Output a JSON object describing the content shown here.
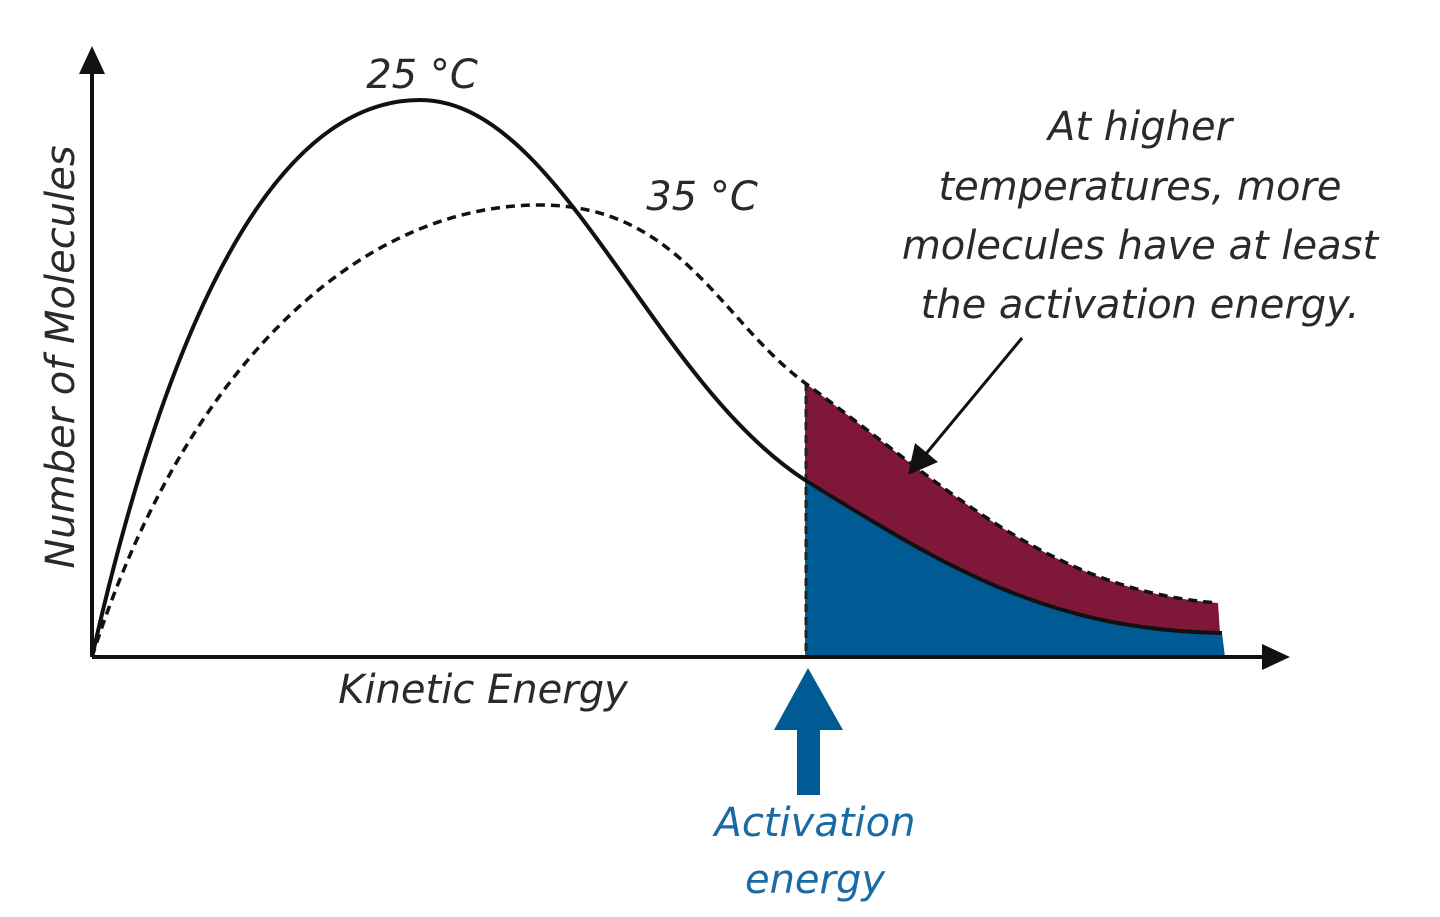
{
  "axes": {
    "x_label": "Kinetic Energy",
    "y_label": "Number of Molecules"
  },
  "curves": [
    {
      "label": "25 °C"
    },
    {
      "label": "35 °C"
    }
  ],
  "annotation": {
    "lines": [
      "At higher",
      "temperatures, more",
      "molecules have at least",
      "the activation energy."
    ]
  },
  "marker": {
    "lines": [
      "Activation",
      "energy"
    ]
  }
}
